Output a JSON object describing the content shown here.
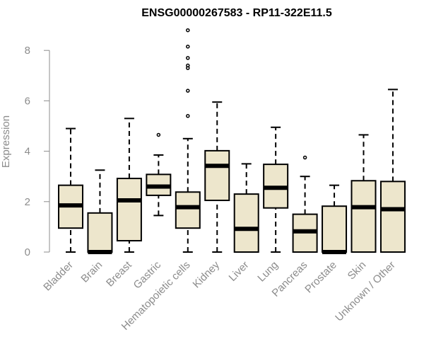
{
  "chart_data": {
    "type": "boxplot",
    "title": "ENSG00000267583 - RP11-322E11.5",
    "ylabel": "Expression",
    "xlabel": "",
    "ylim": [
      0,
      8.8
    ],
    "yticks": [
      0,
      2,
      4,
      6,
      8
    ],
    "categories": [
      "Bladder",
      "Brain",
      "Breast",
      "Gastric",
      "Hematopoietic cells",
      "Kidney",
      "Liver",
      "Lung",
      "Pancreas",
      "Prostate",
      "Skin",
      "Unknown / Other"
    ],
    "boxes": [
      {
        "min": 0,
        "q1": 0.95,
        "median": 1.85,
        "q3": 2.65,
        "max": 4.9,
        "outliers": []
      },
      {
        "min": 0,
        "q1": 0,
        "median": 0,
        "q3": 1.55,
        "max": 3.25,
        "outliers": []
      },
      {
        "min": 0,
        "q1": 0.45,
        "median": 2.05,
        "q3": 2.92,
        "max": 5.3,
        "outliers": []
      },
      {
        "min": 1.45,
        "q1": 2.25,
        "median": 2.6,
        "q3": 3.08,
        "max": 3.85,
        "outliers": [
          4.65
        ]
      },
      {
        "min": 0,
        "q1": 0.95,
        "median": 1.78,
        "q3": 2.38,
        "max": 4.5,
        "outliers": [
          5.4,
          6.4,
          7.3,
          7.4,
          7.7,
          8.15,
          8.8
        ]
      },
      {
        "min": 0,
        "q1": 2.05,
        "median": 3.42,
        "q3": 4.02,
        "max": 5.95,
        "outliers": []
      },
      {
        "min": 0,
        "q1": 0,
        "median": 0.92,
        "q3": 2.3,
        "max": 3.5,
        "outliers": []
      },
      {
        "min": 0,
        "q1": 1.75,
        "median": 2.55,
        "q3": 3.48,
        "max": 4.95,
        "outliers": []
      },
      {
        "min": 0,
        "q1": 0,
        "median": 0.82,
        "q3": 1.5,
        "max": 3.0,
        "outliers": [
          3.75
        ]
      },
      {
        "min": 0,
        "q1": 0,
        "median": 0,
        "q3": 1.82,
        "max": 2.65,
        "outliers": []
      },
      {
        "min": 0,
        "q1": 0,
        "median": 1.78,
        "q3": 2.83,
        "max": 4.65,
        "outliers": []
      },
      {
        "min": 0,
        "q1": 0,
        "median": 1.7,
        "q3": 2.8,
        "max": 6.45,
        "outliers": []
      }
    ],
    "box_fill": "#ede6cc",
    "grid": false
  }
}
